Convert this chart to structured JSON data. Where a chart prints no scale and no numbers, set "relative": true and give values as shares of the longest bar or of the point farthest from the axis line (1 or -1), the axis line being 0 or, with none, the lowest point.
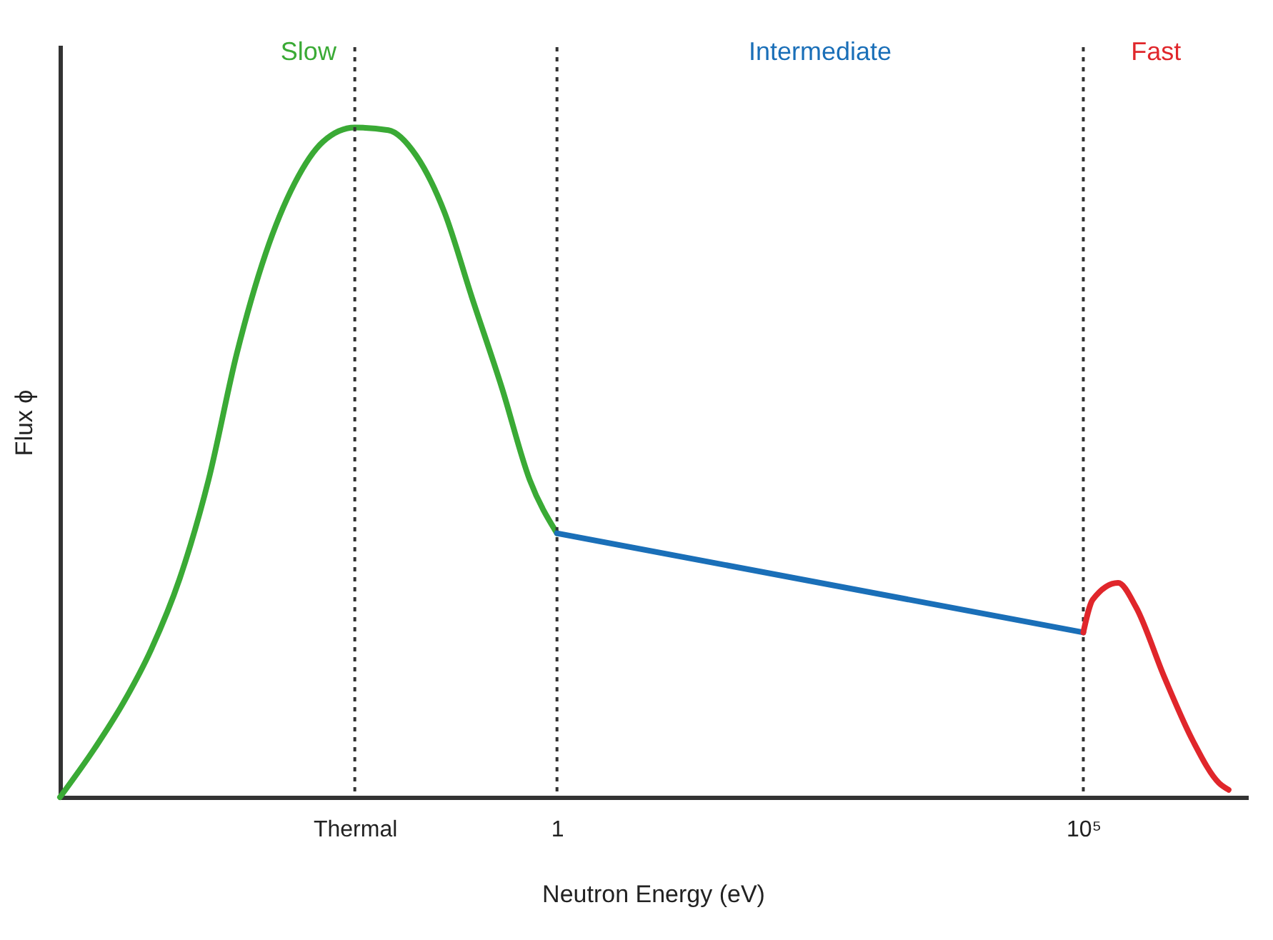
{
  "chart_data": {
    "type": "line",
    "relative": true,
    "xlabel": "Neutron Energy (eV)",
    "ylabel": "Flux ϕ",
    "log": "x",
    "xlim": [
      1.9e-05,
      3500000.0
    ],
    "xticks": [
      {
        "value": 0.012,
        "label": "Thermal"
      },
      1,
      {
        "value": 100000,
        "label": "10⁵"
      }
    ],
    "grid": false,
    "marker": "none",
    "line_style": "solid",
    "ref_lines": [
      {
        "axis": "x",
        "value": 0.012,
        "line_style": "dotted",
        "color": "#333333"
      },
      {
        "axis": "x",
        "value": 1,
        "line_style": "dotted",
        "color": "#333333"
      },
      {
        "axis": "x",
        "value": 100000,
        "line_style": "dotted",
        "color": "#333333"
      }
    ],
    "series": [
      {
        "name": "Slow",
        "color": "#3aaa35",
        "x": [
          1.9e-05,
          4.1e-05,
          7.6e-05,
          0.00014,
          0.00026,
          0.00049,
          0.00091,
          0.0017,
          0.0032,
          0.006,
          0.012,
          0.025,
          0.046,
          0.085,
          0.155,
          0.3,
          0.55,
          1
        ],
        "values": [
          0,
          0.074,
          0.141,
          0.221,
          0.326,
          0.474,
          0.663,
          0.811,
          0.916,
          0.979,
          1,
          0.996,
          0.958,
          0.874,
          0.747,
          0.611,
          0.474,
          0.394
        ]
      },
      {
        "name": "Intermediate",
        "color": "#1a6fb8",
        "x": [
          1,
          100000
        ],
        "values": [
          0.394,
          0.246
        ]
      },
      {
        "name": "Fast",
        "color": "#e0262b",
        "x": [
          100000,
          123000,
          214000,
          316000,
          589000,
          1100000,
          1950000,
          2400000
        ],
        "values": [
          0.246,
          0.295,
          0.32,
          0.284,
          0.179,
          0.084,
          0.021,
          0.011
        ]
      }
    ]
  }
}
